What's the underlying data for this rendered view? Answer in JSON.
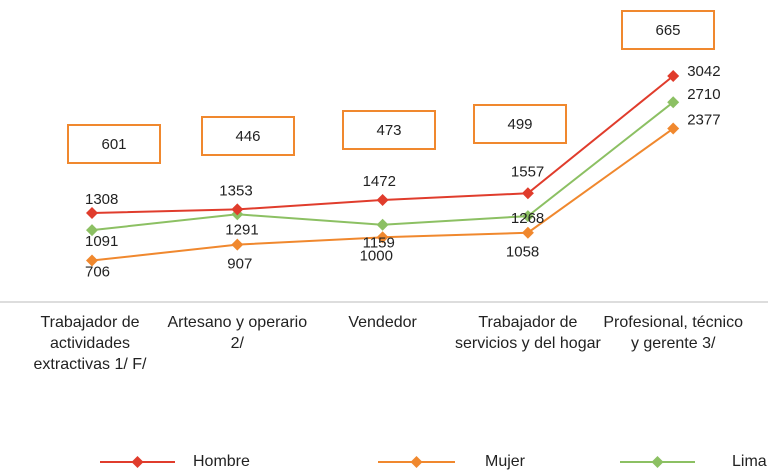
{
  "chart_data": {
    "type": "line",
    "categories": [
      "Trabajador de actividades extractivas 1/ F/",
      "Artesano y operario 2/",
      "Vendedor",
      "Trabajador de servicios y del hogar",
      "Profesional, técnico y gerente 3/"
    ],
    "series": [
      {
        "name": "Hombre",
        "color": "#e03c2c",
        "values": [
          1308,
          1353,
          1472,
          1557,
          3042
        ]
      },
      {
        "name": "Mujer",
        "color": "#f0882e",
        "values": [
          706,
          907,
          1000,
          1058,
          2377
        ]
      },
      {
        "name": "Lima Metropolitana",
        "color": "#8cc063",
        "values": [
          1091,
          1291,
          1159,
          1268,
          2710
        ]
      }
    ],
    "annotations": [
      601,
      446,
      473,
      499,
      665
    ],
    "annotation_color": "#f0882e",
    "legend": "bottom"
  }
}
